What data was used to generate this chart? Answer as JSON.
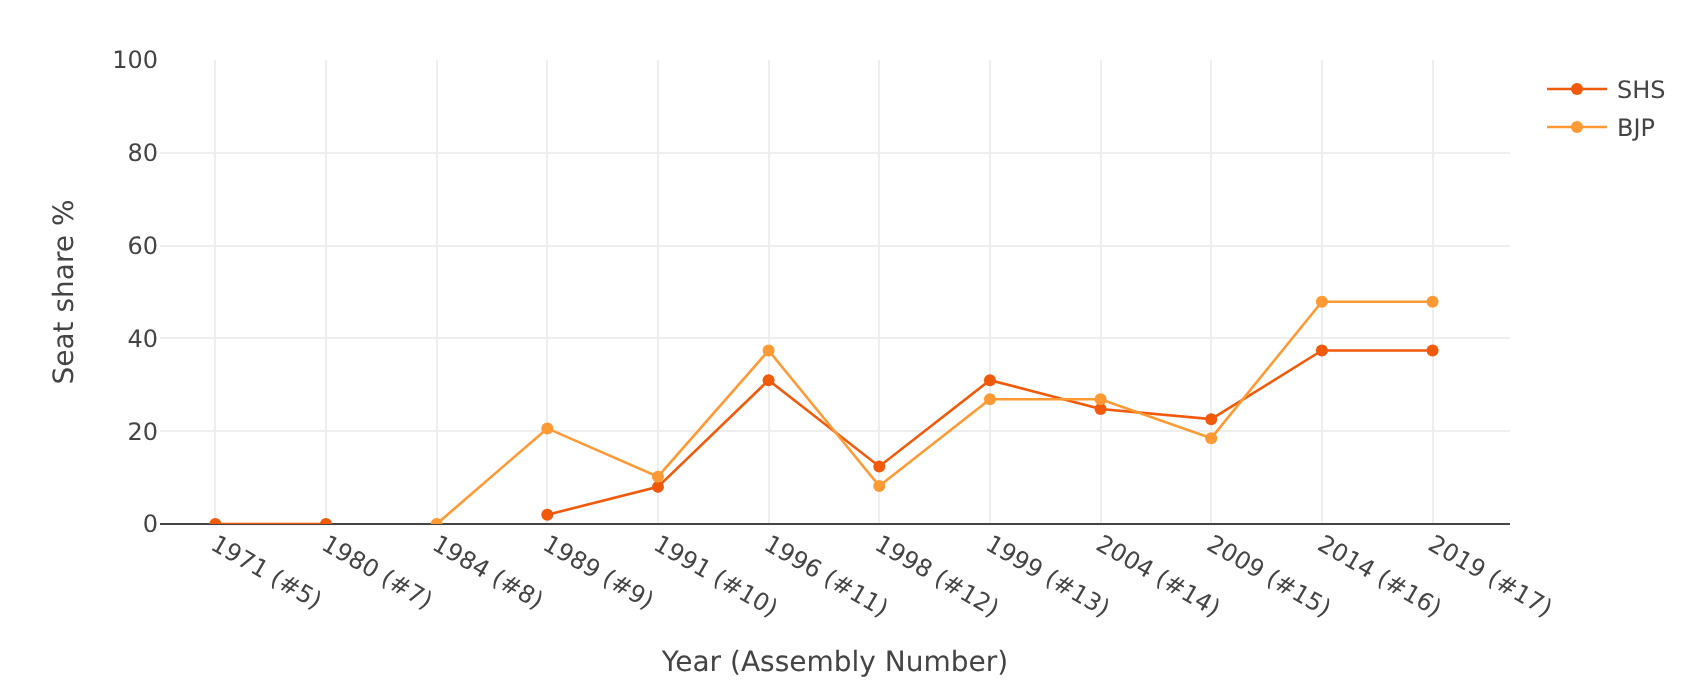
{
  "chart_data": {
    "type": "line",
    "xlabel": "Year (Assembly Number)",
    "ylabel": "Seat share %",
    "categories": [
      "1971 (#5)",
      "1980 (#7)",
      "1984 (#8)",
      "1989 (#9)",
      "1991 (#10)",
      "1996 (#11)",
      "1998 (#12)",
      "1999 (#13)",
      "2004 (#14)",
      "2009 (#15)",
      "2014 (#16)",
      "2019 (#17)"
    ],
    "series": [
      {
        "name": "SHS",
        "color": "#f05a0a",
        "values": [
          0,
          0,
          null,
          2,
          8,
          31,
          12.4,
          31,
          24.8,
          22.6,
          37.4,
          37.4
        ]
      },
      {
        "name": "BJP",
        "color": "#ff9933",
        "values": [
          null,
          null,
          0,
          20.6,
          10.2,
          37.4,
          8.2,
          26.9,
          26.9,
          18.5,
          47.9,
          47.9
        ]
      }
    ],
    "ylim": [
      0,
      100
    ],
    "yticks": [
      0,
      20,
      40,
      60,
      80,
      100
    ],
    "grid": true,
    "legend": "top right",
    "marker": "circle",
    "line_style": "solid"
  }
}
